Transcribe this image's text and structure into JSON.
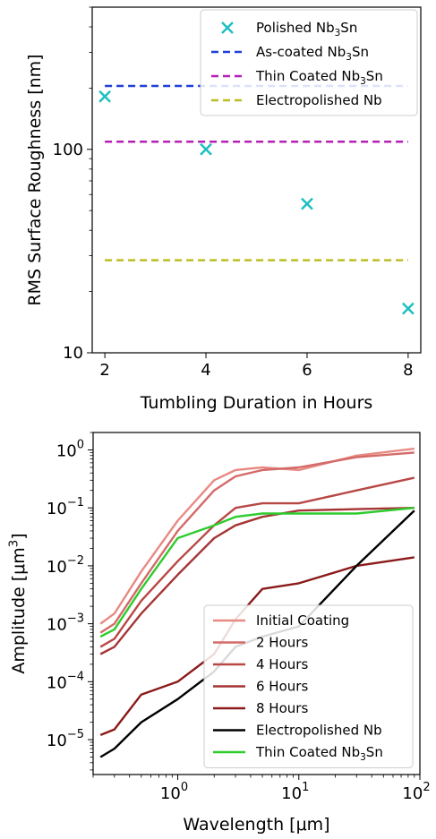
{
  "chart_data": [
    {
      "type": "scatter",
      "xlabel": "Tumbling Duration in Hours",
      "ylabel": "RMS Surface Roughness [nm]",
      "xlim": [
        1.75,
        8.25
      ],
      "ylim": [
        10,
        500
      ],
      "yscale": "log",
      "xticks": [
        2,
        4,
        6,
        8
      ],
      "yticks": [
        10,
        100
      ],
      "grid": false,
      "legend_position": "top-right",
      "series": [
        {
          "name": "Polished Nb3Sn",
          "label_main": "Polished Nb",
          "label_sub": "3",
          "label_tail": "Sn",
          "kind": "scatter",
          "marker": "x",
          "color": "#1fbfbf",
          "x": [
            2,
            4,
            6,
            8
          ],
          "y": [
            182,
            100,
            54,
            16.5
          ]
        },
        {
          "name": "As-coated Nb3Sn",
          "label_main": "As-coated Nb",
          "label_sub": "3",
          "label_tail": "Sn",
          "kind": "hline",
          "color": "#1f3fd8",
          "y": 205
        },
        {
          "name": "Thin Coated Nb3Sn",
          "label_main": "Thin Coated Nb",
          "label_sub": "3",
          "label_tail": "Sn",
          "kind": "hline",
          "color": "#b51fb5",
          "y": 109
        },
        {
          "name": "Electropolished Nb",
          "label_main": "Electropolished Nb",
          "label_sub": "",
          "label_tail": "",
          "kind": "hline",
          "color": "#bcbd22",
          "y": 28.5
        }
      ]
    },
    {
      "type": "line",
      "xlabel": "Wavelength [μm]",
      "ylabel_main": "Amplitude [μm",
      "ylabel_sup": "3",
      "ylabel_tail": "]",
      "xscale": "log",
      "yscale": "log",
      "xlim": [
        0.2,
        100
      ],
      "ylim": [
        2.5e-06,
        2
      ],
      "xticks": [
        {
          "base": "10",
          "exp": "0",
          "value": 1
        },
        {
          "base": "10",
          "exp": "1",
          "value": 10
        },
        {
          "base": "10",
          "exp": "2",
          "value": 100
        }
      ],
      "yticks": [
        {
          "base": "10",
          "exp": "−5",
          "value": 1e-05
        },
        {
          "base": "10",
          "exp": "−4",
          "value": 0.0001
        },
        {
          "base": "10",
          "exp": "−3",
          "value": 0.001
        },
        {
          "base": "10",
          "exp": "−2",
          "value": 0.01
        },
        {
          "base": "10",
          "exp": "−1",
          "value": 0.1
        },
        {
          "base": "10",
          "exp": "0",
          "value": 1
        }
      ],
      "grid": false,
      "legend_position": "lower-right",
      "series": [
        {
          "name": "Initial Coating",
          "label_main": "Initial Coating",
          "label_sub": "",
          "label_tail": "",
          "color": "#e88a84",
          "x": [
            0.23,
            0.3,
            0.5,
            1,
            2,
            3,
            5,
            10,
            30,
            90
          ],
          "y": [
            0.001,
            0.0015,
            0.008,
            0.06,
            0.3,
            0.45,
            0.5,
            0.45,
            0.8,
            1.05
          ]
        },
        {
          "name": "2 Hours",
          "label_main": "2 Hours",
          "label_sub": "",
          "label_tail": "",
          "color": "#d46a68",
          "x": [
            0.23,
            0.3,
            0.5,
            1,
            2,
            3,
            5,
            10,
            30,
            90
          ],
          "y": [
            0.0007,
            0.001,
            0.005,
            0.04,
            0.2,
            0.35,
            0.45,
            0.5,
            0.75,
            0.9
          ]
        },
        {
          "name": "4 Hours",
          "label_main": "4 Hours",
          "label_sub": "",
          "label_tail": "",
          "color": "#b84845",
          "x": [
            0.23,
            0.3,
            0.5,
            1,
            2,
            3,
            5,
            10,
            30,
            90
          ],
          "y": [
            0.0004,
            0.00055,
            0.0025,
            0.012,
            0.05,
            0.1,
            0.12,
            0.12,
            0.2,
            0.33
          ]
        },
        {
          "name": "6 Hours",
          "label_main": "6 Hours",
          "label_sub": "",
          "label_tail": "",
          "color": "#a53535",
          "x": [
            0.23,
            0.3,
            0.5,
            1,
            2,
            3,
            5,
            10,
            30,
            90
          ],
          "y": [
            0.0003,
            0.0004,
            0.0015,
            0.007,
            0.03,
            0.05,
            0.07,
            0.09,
            0.095,
            0.1
          ]
        },
        {
          "name": "8 Hours",
          "label_main": "8 Hours",
          "label_sub": "",
          "label_tail": "",
          "color": "#8b1a1a",
          "x": [
            0.23,
            0.3,
            0.5,
            1,
            2,
            3,
            5,
            10,
            30,
            90
          ],
          "y": [
            1.2e-05,
            1.5e-05,
            6e-05,
            0.0001,
            0.0003,
            0.0012,
            0.004,
            0.005,
            0.01,
            0.014
          ]
        },
        {
          "name": "Electropolished Nb",
          "label_main": "Electropolished Nb",
          "label_sub": "",
          "label_tail": "",
          "color": "#000000",
          "x": [
            0.23,
            0.3,
            0.5,
            1,
            2,
            3,
            5,
            10,
            30,
            90
          ],
          "y": [
            5e-06,
            7e-06,
            2e-05,
            5e-05,
            0.00015,
            0.0004,
            0.0006,
            0.0009,
            0.01,
            0.09
          ]
        },
        {
          "name": "Thin Coated Nb3Sn",
          "label_main": "Thin Coated Nb",
          "label_sub": "3",
          "label_tail": "Sn",
          "color": "#2ecc2e",
          "x": [
            0.23,
            0.3,
            0.5,
            1,
            2,
            3,
            5,
            10,
            30,
            90
          ],
          "y": [
            0.0006,
            0.0008,
            0.004,
            0.03,
            0.05,
            0.07,
            0.08,
            0.08,
            0.08,
            0.1
          ]
        }
      ]
    }
  ]
}
